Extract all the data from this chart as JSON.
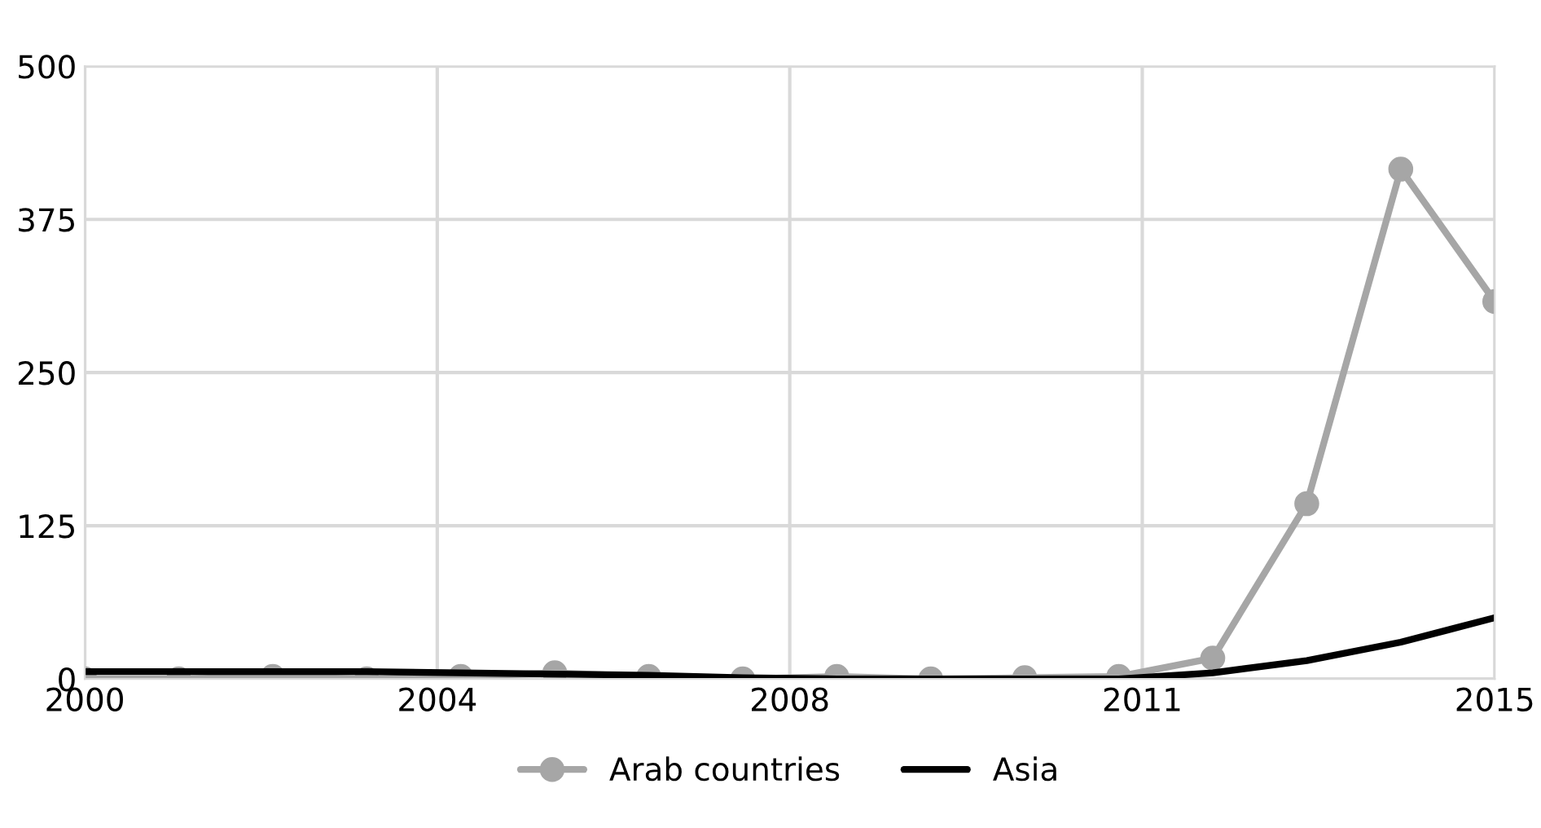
{
  "chart_data": {
    "type": "line",
    "x": [
      2000,
      2001,
      2002,
      2003,
      2004,
      2005,
      2006,
      2007,
      2008,
      2009,
      2010,
      2011,
      2012,
      2013,
      2014,
      2015
    ],
    "series": [
      {
        "name": "Arab countries",
        "color": "#a6a6a6",
        "marker": "circle",
        "values": [
          0,
          0,
          2,
          0,
          2,
          5,
          2,
          0,
          2,
          0,
          1,
          2,
          17,
          143,
          416,
          308
        ]
      },
      {
        "name": "Asia",
        "color": "#000000",
        "marker": "none",
        "values": [
          6,
          6,
          6,
          6,
          5,
          4,
          3,
          1,
          0,
          0,
          0,
          0,
          5,
          15,
          30,
          50
        ]
      }
    ],
    "xlim": [
      2000,
      2015
    ],
    "xticks": [
      2000,
      {
        "value": 2003.75,
        "label": "2004"
      },
      {
        "value": 2007.5,
        "label": "2008"
      },
      {
        "value": 2011.25,
        "label": "2011"
      },
      2015
    ],
    "ylim": [
      0,
      500
    ],
    "yticks": [
      0,
      125,
      250,
      375,
      500
    ],
    "grid": true,
    "legend": "bottom"
  }
}
